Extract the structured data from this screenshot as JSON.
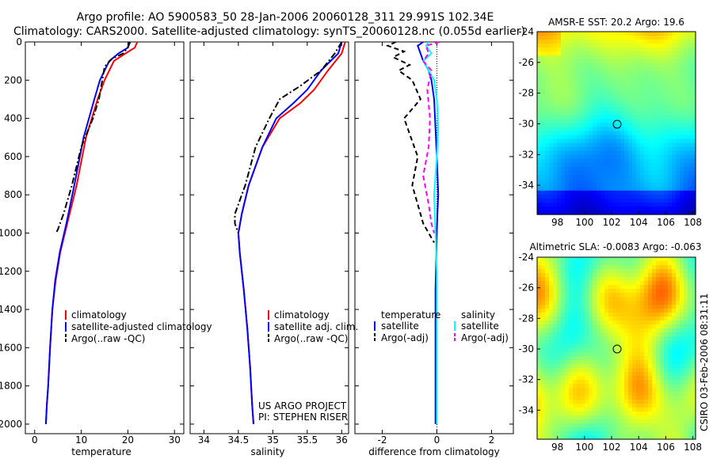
{
  "header": {
    "line1": "Argo profile: AO 5900583_50 28-Jan-2006 20060128_311 29.991S 102.34E",
    "line2": "Climatology: CARS2000. Satellite-adjusted climatology: synTS_20060128.nc (0.055d earlier)"
  },
  "footer": {
    "project": "US ARGO PROJECT",
    "pi": "PI: STEPHEN RISER",
    "stamp": "CSIRO 03-Feb-2006 08:31:11"
  },
  "colors": {
    "climatology": "#ff0000",
    "satellite": "#0000ff",
    "argo": "#000000",
    "salinity_satellite": "#00ffff",
    "salinity_argo": "#ff00ff"
  },
  "chart_data": [
    {
      "type": "line",
      "id": "temperature",
      "xlabel": "temperature",
      "ylabel": "",
      "xlim": [
        -2,
        32
      ],
      "ylim": [
        2050,
        0
      ],
      "x_ticks": [
        "0",
        "10",
        "20",
        "30"
      ],
      "x_tick_values": [
        0,
        10,
        20,
        30
      ],
      "y_ticks": [
        "0",
        "200",
        "400",
        "600",
        "800",
        "1000",
        "1200",
        "1400",
        "1600",
        "1800",
        "2000"
      ],
      "y_tick_values": [
        0,
        200,
        400,
        600,
        800,
        1000,
        1200,
        1400,
        1600,
        1800,
        2000
      ],
      "legend": [
        "climatology",
        "satellite-adjusted climatology",
        "Argo(..raw -QC)"
      ],
      "series": [
        {
          "name": "climatology",
          "color": "#ff0000",
          "style": "solid",
          "x": [
            22.0,
            21.5,
            19.5,
            17.0,
            16.0,
            15.0,
            13.5,
            11.0,
            9.0,
            7.0,
            5.5,
            4.5,
            3.8,
            3.3,
            2.9,
            2.6,
            2.4
          ],
          "y": [
            0,
            30,
            60,
            100,
            150,
            200,
            300,
            500,
            750,
            950,
            1100,
            1250,
            1400,
            1600,
            1800,
            1900,
            2000
          ]
        },
        {
          "name": "satellite-adjusted climatology",
          "color": "#0000ff",
          "style": "solid",
          "x": [
            20.5,
            20.0,
            18.0,
            16.0,
            15.0,
            14.0,
            12.8,
            10.5,
            8.5,
            6.8,
            5.4,
            4.4,
            3.8,
            3.3,
            2.9,
            2.6,
            2.4
          ],
          "y": [
            0,
            30,
            60,
            100,
            150,
            200,
            300,
            500,
            750,
            950,
            1100,
            1250,
            1400,
            1600,
            1800,
            1900,
            2000
          ]
        },
        {
          "name": "Argo(..raw -QC)",
          "color": "#000000",
          "style": "dashdot",
          "x": [
            20.3,
            20.0,
            19.0,
            16.5,
            15.0,
            14.5,
            13.8,
            12.5,
            10.0,
            8.0,
            6.2,
            5.0,
            4.6
          ],
          "y": [
            0,
            30,
            60,
            90,
            130,
            200,
            300,
            400,
            550,
            750,
            900,
            980,
            1000
          ]
        }
      ]
    },
    {
      "type": "line",
      "id": "salinity",
      "xlabel": "salinity",
      "ylabel": "",
      "xlim": [
        33.8,
        36.1
      ],
      "ylim": [
        2050,
        0
      ],
      "x_ticks": [
        "34",
        "34.5",
        "35",
        "35.5",
        "36"
      ],
      "x_tick_values": [
        34,
        34.5,
        35,
        35.5,
        36
      ],
      "legend": [
        "climatology",
        "satellite adj. clim.",
        "Argo(..raw -QC)"
      ],
      "series": [
        {
          "name": "climatology",
          "color": "#ff0000",
          "style": "solid",
          "x": [
            36.05,
            36.0,
            35.8,
            35.6,
            35.4,
            35.1,
            34.85,
            34.65,
            34.55,
            34.5,
            34.52,
            34.58,
            34.63,
            34.67,
            34.7,
            34.72
          ],
          "y": [
            0,
            60,
            150,
            250,
            320,
            400,
            550,
            750,
            900,
            1000,
            1100,
            1300,
            1500,
            1700,
            1900,
            2000
          ]
        },
        {
          "name": "satellite adj. clim.",
          "color": "#0000ff",
          "style": "solid",
          "x": [
            36.0,
            35.95,
            35.7,
            35.5,
            35.3,
            35.05,
            34.85,
            34.65,
            34.55,
            34.5,
            34.52,
            34.58,
            34.63,
            34.67,
            34.7,
            34.72
          ],
          "y": [
            0,
            60,
            150,
            250,
            320,
            400,
            550,
            750,
            900,
            1000,
            1100,
            1300,
            1500,
            1700,
            1900,
            2000
          ]
        },
        {
          "name": "Argo(..raw -QC)",
          "color": "#000000",
          "style": "dashdot",
          "x": [
            36.0,
            35.9,
            35.7,
            35.4,
            35.1,
            34.95,
            34.75,
            34.6,
            34.45,
            34.45,
            34.5
          ],
          "y": [
            0,
            60,
            150,
            230,
            300,
            400,
            550,
            750,
            900,
            950,
            1000
          ]
        }
      ]
    },
    {
      "type": "line",
      "id": "difference",
      "xlabel": "difference from climatology",
      "ylabel": "",
      "xlim": [
        -3.0,
        2.8
      ],
      "ylim": [
        2050,
        0
      ],
      "x_ticks": [
        "-2",
        "0",
        "2"
      ],
      "x_tick_values": [
        -2,
        0,
        2
      ],
      "legend_headers": [
        "temperature",
        "salinity"
      ],
      "legend": [
        "satellite",
        "Argo(-adj)",
        "satellite",
        "Argo(-adj)"
      ],
      "zero_line": 0,
      "series": [
        {
          "name": "temperature satellite",
          "color": "#0000ff",
          "style": "solid",
          "x": [
            -0.5,
            -0.7,
            -0.6,
            -0.5,
            -0.3,
            -0.2,
            -0.1,
            -0.05,
            0.0,
            0.05,
            0.02,
            0.0,
            -0.02,
            -0.05,
            -0.05,
            -0.05,
            -0.05
          ],
          "y": [
            0,
            20,
            60,
            100,
            150,
            200,
            300,
            450,
            600,
            800,
            900,
            1000,
            1100,
            1300,
            1500,
            1800,
            2000
          ]
        },
        {
          "name": "temperature Argo(-adj)",
          "color": "#000000",
          "style": "dashed",
          "x": [
            -1.5,
            -1.8,
            -1.2,
            -1.6,
            -1.0,
            -1.4,
            -0.9,
            -0.6,
            -1.2,
            -0.7,
            -0.9,
            -0.7,
            -0.5,
            -0.3,
            -0.1
          ],
          "y": [
            0,
            20,
            50,
            80,
            120,
            150,
            200,
            300,
            400,
            600,
            750,
            850,
            950,
            1000,
            1050
          ]
        },
        {
          "name": "salinity satellite",
          "color": "#00ffff",
          "style": "solid",
          "x": [
            -0.3,
            -0.4,
            -0.2,
            -0.5,
            -0.3,
            -0.1,
            0.0,
            0.05,
            0.0,
            -0.1,
            -0.05,
            0.0,
            0.0,
            0.0,
            0.0
          ],
          "y": [
            0,
            20,
            60,
            100,
            150,
            200,
            300,
            450,
            600,
            800,
            1000,
            1200,
            1500,
            1800,
            2000
          ]
        },
        {
          "name": "salinity Argo(-adj)",
          "color": "#ff00ff",
          "style": "dashed",
          "x": [
            0.1,
            -0.4,
            -0.3,
            -0.5,
            -0.2,
            -0.35,
            -0.25,
            -0.3,
            -0.5,
            -0.3,
            -0.2,
            -0.1
          ],
          "y": [
            0,
            20,
            60,
            100,
            150,
            250,
            400,
            550,
            700,
            850,
            950,
            1000
          ]
        }
      ]
    },
    {
      "type": "heatmap",
      "id": "sst_map",
      "title": "AMSR-E SST: 20.2 Argo: 19.6",
      "xlim": [
        96.5,
        108.2
      ],
      "ylim": [
        -35.9,
        -24.0
      ],
      "x_ticks": [
        "98",
        "100",
        "102",
        "104",
        "106",
        "108"
      ],
      "x_tick_values": [
        98,
        100,
        102,
        104,
        106,
        108
      ],
      "y_ticks": [
        "-24",
        "-26",
        "-28",
        "-30",
        "-32",
        "-34"
      ],
      "y_tick_values": [
        -24,
        -26,
        -28,
        -30,
        -32,
        -34
      ],
      "marker": {
        "lon": 102.34,
        "lat": -29.991
      }
    },
    {
      "type": "heatmap",
      "id": "sla_map",
      "title": "Altimetric SLA: -0.0083 Argo: -0.063",
      "xlim": [
        96.5,
        108.2
      ],
      "ylim": [
        -35.9,
        -24.0
      ],
      "x_ticks": [
        "98",
        "100",
        "102",
        "104",
        "106",
        "108"
      ],
      "x_tick_values": [
        98,
        100,
        102,
        104,
        106,
        108
      ],
      "y_ticks": [
        "-24",
        "-26",
        "-28",
        "-30",
        "-32",
        "-34"
      ],
      "y_tick_values": [
        -24,
        -26,
        -28,
        -30,
        -32,
        -34
      ],
      "marker": {
        "lon": 102.34,
        "lat": -29.991
      }
    }
  ]
}
